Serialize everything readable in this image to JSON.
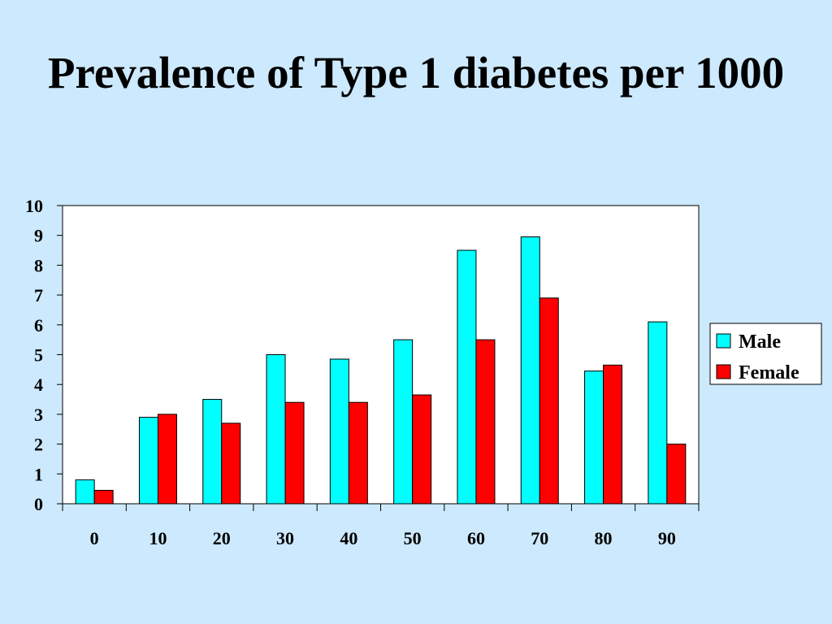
{
  "chart_data": {
    "type": "bar",
    "title": "Prevalence of Type 1 diabetes per 1000",
    "xlabel": "",
    "ylabel": "",
    "categories": [
      "0",
      "10",
      "20",
      "30",
      "40",
      "50",
      "60",
      "70",
      "80",
      "90"
    ],
    "series": [
      {
        "name": "Male",
        "color": "#00ffff",
        "values": [
          0.8,
          2.9,
          3.5,
          5.0,
          4.85,
          5.5,
          8.5,
          8.95,
          4.45,
          6.1
        ]
      },
      {
        "name": "Female",
        "color": "#ff0000",
        "values": [
          0.45,
          3.0,
          2.7,
          3.4,
          3.4,
          3.65,
          5.5,
          6.9,
          4.65,
          2.0
        ]
      }
    ],
    "ylim": [
      0,
      10
    ],
    "yticks": [
      "0",
      "1",
      "2",
      "3",
      "4",
      "5",
      "6",
      "7",
      "8",
      "9",
      "10"
    ],
    "grid": false,
    "legend_position": "right"
  }
}
